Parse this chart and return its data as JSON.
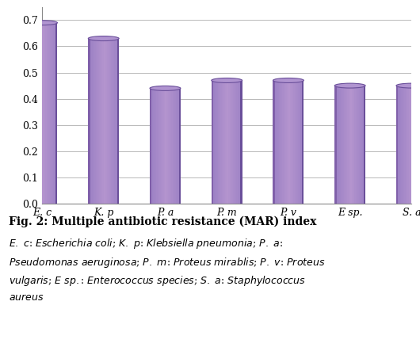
{
  "categories": [
    "E. c",
    "K. p",
    "P. a",
    "P. m",
    "P. v",
    "E sp.",
    "S. a"
  ],
  "values": [
    0.69,
    0.63,
    0.44,
    0.47,
    0.47,
    0.45,
    0.45
  ],
  "bar_color_main": "#9b80c4",
  "bar_color_light": "#c4a8e0",
  "bar_color_dark": "#6a4f9a",
  "bar_color_top": "#b094d0",
  "bar_width": 0.5,
  "ylim": [
    0,
    0.75
  ],
  "yticks": [
    0.0,
    0.1,
    0.2,
    0.3,
    0.4,
    0.5,
    0.6,
    0.7
  ],
  "title": "Fig. 2: Multiple antibiotic resistance (MAR) index",
  "background_color": "#ffffff",
  "grid_color": "#b8b8b8",
  "tick_label_fontsize": 9,
  "title_fontsize": 10,
  "caption_fontsize": 9,
  "floor_color": "#e8e0f0"
}
